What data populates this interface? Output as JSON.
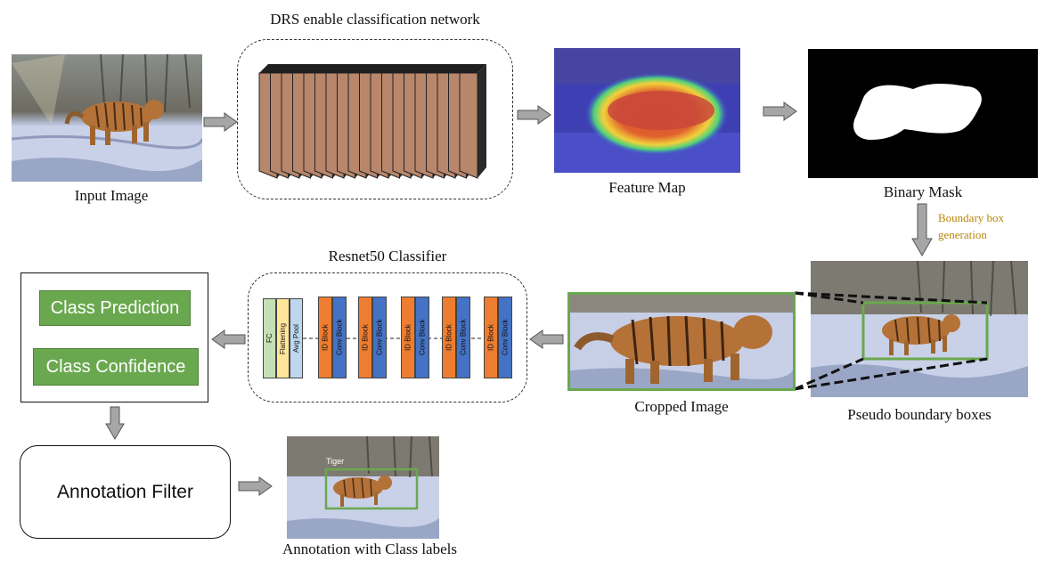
{
  "labels": {
    "input_image": "Input Image",
    "drs_network": "DRS enable classification network",
    "feature_map": "Feature Map",
    "binary_mask": "Binary Mask",
    "boundary_box_generation_1": "Boundary box",
    "boundary_box_generation_2": "generation",
    "pseudo_boxes": "Pseudo boundary boxes",
    "cropped_image": "Cropped Image",
    "resnet50": "Resnet50 Classifier",
    "annotation_filter": "Annotation Filter",
    "annotation_with_labels": "Annotation with Class labels",
    "tiger_tag": "Tiger"
  },
  "outputs": {
    "class_prediction": "Class Prediction",
    "class_confidence": "Class Confidence"
  },
  "resnet_layers": {
    "fc": "FC",
    "flattening": "Flattening",
    "avg_pool": "Avg Pool",
    "id_block": "ID Block",
    "conv_block": "Conv Block"
  },
  "colors": {
    "layer_fill": "#b8866b",
    "green": "#6aa84f",
    "id_block": "#ed7d31",
    "conv_block": "#4472c4",
    "fc": "#c5e0b4",
    "flattening": "#ffe699",
    "avg_pool": "#bdd7ee",
    "arrow": "#a6a6a6",
    "annotation_accent": "#b8860b"
  }
}
